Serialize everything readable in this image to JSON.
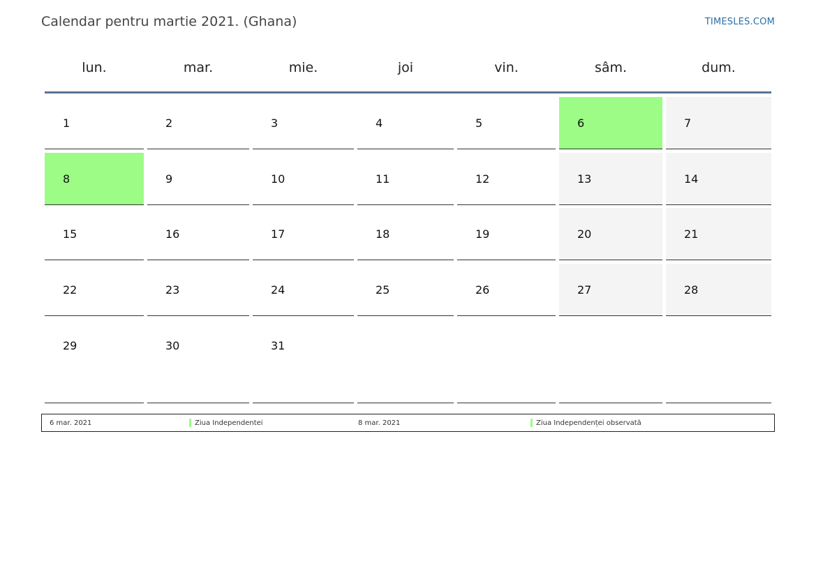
{
  "header": {
    "title": "Calendar pentru martie 2021. (Ghana)",
    "brand": "TIMESLES.COM"
  },
  "calendar": {
    "weekdays": [
      "lun.",
      "mar.",
      "mie.",
      "joi",
      "vin.",
      "sâm.",
      "dum."
    ],
    "weeks": [
      [
        "1",
        "2",
        "3",
        "4",
        "5",
        "6",
        "7"
      ],
      [
        "8",
        "9",
        "10",
        "11",
        "12",
        "13",
        "14"
      ],
      [
        "15",
        "16",
        "17",
        "18",
        "19",
        "20",
        "21"
      ],
      [
        "22",
        "23",
        "24",
        "25",
        "26",
        "27",
        "28"
      ],
      [
        "29",
        "30",
        "31",
        "",
        "",
        "",
        ""
      ]
    ],
    "holiday_days": [
      "6",
      "8"
    ],
    "colors": {
      "holiday": "#9cfc86",
      "weekend": "#f4f4f4",
      "header_rule": "#5b7393",
      "brand": "#2b6ea8"
    }
  },
  "legend": {
    "items": [
      {
        "date": "6 mar. 2021",
        "name": "Ziua Independentei"
      },
      {
        "date": "8 mar. 2021",
        "name": "Ziua Independenței observată"
      }
    ]
  }
}
